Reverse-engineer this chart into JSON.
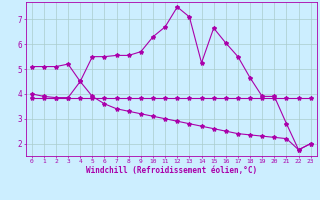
{
  "background_color": "#cceeff",
  "line_color": "#aa00aa",
  "grid_color": "#aacccc",
  "xlabel": "Windchill (Refroidissement éolien,°C)",
  "tick_color": "#aa00aa",
  "ylim": [
    1.5,
    7.7
  ],
  "xlim": [
    -0.5,
    23.5
  ],
  "yticks": [
    2,
    3,
    4,
    5,
    6,
    7
  ],
  "xticks": [
    0,
    1,
    2,
    3,
    4,
    5,
    6,
    7,
    8,
    9,
    10,
    11,
    12,
    13,
    14,
    15,
    16,
    17,
    18,
    19,
    20,
    21,
    22,
    23
  ],
  "series1_x": [
    0,
    1,
    2,
    3,
    4,
    5,
    6,
    7,
    8,
    9,
    10,
    11,
    12,
    13,
    14,
    15,
    16,
    17,
    18,
    19,
    20,
    21,
    22,
    23
  ],
  "series1_y": [
    5.1,
    5.1,
    5.1,
    5.2,
    4.5,
    5.5,
    5.5,
    5.55,
    5.55,
    5.7,
    6.3,
    6.7,
    7.5,
    7.1,
    5.25,
    6.65,
    6.05,
    5.5,
    4.65,
    3.9,
    3.9,
    2.8,
    1.75,
    2.0
  ],
  "series2_x": [
    0,
    1,
    2,
    3,
    4,
    5,
    6,
    7,
    8,
    9,
    10,
    11,
    12,
    13,
    14,
    15,
    16,
    17,
    18,
    19,
    20,
    21,
    22,
    23
  ],
  "series2_y": [
    3.85,
    3.85,
    3.85,
    3.85,
    3.85,
    3.85,
    3.85,
    3.85,
    3.85,
    3.85,
    3.85,
    3.85,
    3.85,
    3.85,
    3.85,
    3.85,
    3.85,
    3.85,
    3.85,
    3.85,
    3.85,
    3.85,
    3.85,
    3.85
  ],
  "series3_x": [
    0,
    1,
    2,
    3,
    4,
    5,
    6,
    7,
    8,
    9,
    10,
    11,
    12,
    13,
    14,
    15,
    16,
    17,
    18,
    19,
    20,
    21,
    22,
    23
  ],
  "series3_y": [
    4.0,
    3.9,
    3.85,
    3.85,
    4.5,
    3.9,
    3.6,
    3.4,
    3.3,
    3.2,
    3.1,
    3.0,
    2.9,
    2.8,
    2.7,
    2.6,
    2.5,
    2.4,
    2.35,
    2.3,
    2.25,
    2.2,
    1.75,
    2.0
  ]
}
